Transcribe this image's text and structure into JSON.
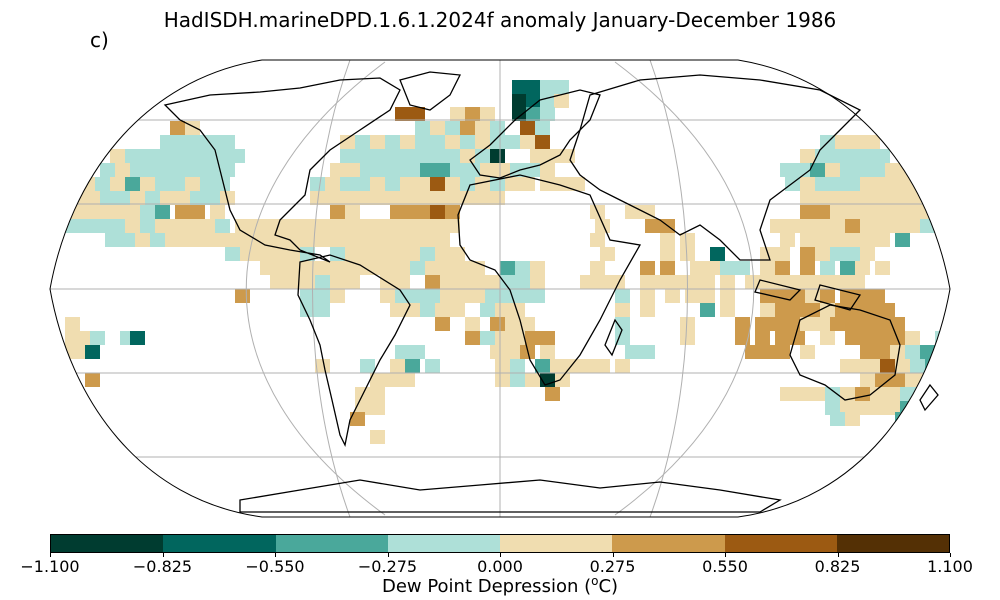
{
  "title": "HadISDH.marineDPD.1.6.1.2024f anomaly January-December 1986",
  "panel_label": "c)",
  "colorbar": {
    "label": "Dew Point Depression (",
    "label_unit_sup": "o",
    "label_unit_tail": "C)",
    "ticks": [
      "−1.100",
      "−0.825",
      "−0.550",
      "−0.275",
      "0.000",
      "0.275",
      "0.550",
      "0.825",
      "1.100"
    ],
    "colors": [
      "#003c30",
      "#01665e",
      "#35978f",
      "#80cdc1",
      "#c7eae5",
      "#f6e8c3",
      "#dfc27d",
      "#bf812d",
      "#8c510a",
      "#543005"
    ],
    "bins": [
      "#003c30",
      "#01665e",
      "#4aa89b",
      "#aee0d8",
      "#f0ddb0",
      "#cd9a4c",
      "#9c5a12",
      "#543005"
    ]
  }
}
